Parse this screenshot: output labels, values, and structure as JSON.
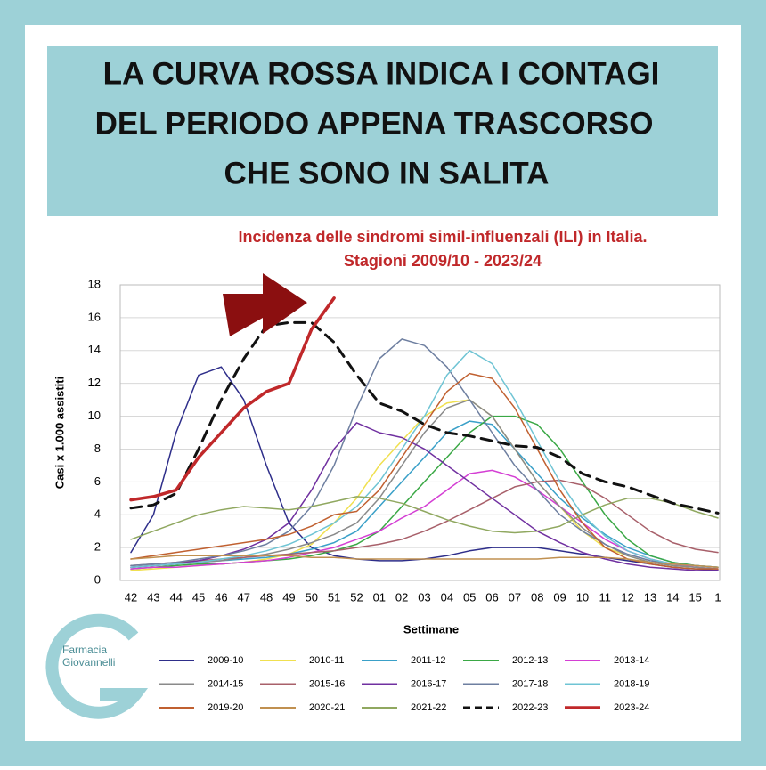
{
  "header": {
    "title_lines": [
      "LA CURVA ROSSA INDICA I CONTAGI",
      "DEL PERIODO APPENA TRASCORSO",
      "CHE SONO IN SALITA"
    ]
  },
  "logo": {
    "line1": "Farmacia",
    "line2": "Giovannelli"
  },
  "chart_data": {
    "type": "line",
    "title_lines": [
      "Incidenza delle sindromi simil-influenzali (ILI) in Italia.",
      "Stagioni 2009/10  - 2023/24"
    ],
    "xlabel": "Settimane",
    "ylabel": "Casi x 1.000 assistiti",
    "categories": [
      "42",
      "43",
      "44",
      "45",
      "46",
      "47",
      "48",
      "49",
      "50",
      "51",
      "52",
      "01",
      "02",
      "03",
      "04",
      "05",
      "06",
      "07",
      "08",
      "09",
      "10",
      "11",
      "12",
      "13",
      "14",
      "15",
      "1"
    ],
    "ylim": [
      0,
      18
    ],
    "yticks": [
      0,
      2,
      4,
      6,
      8,
      10,
      12,
      14,
      16,
      18
    ],
    "grid": true,
    "series": [
      {
        "name": "2009-10",
        "color": "#2e2e8a",
        "values": [
          1.7,
          4,
          9,
          12.5,
          13,
          11,
          7,
          3.5,
          2,
          1.5,
          1.3,
          1.2,
          1.2,
          1.3,
          1.5,
          1.8,
          2,
          2,
          2,
          1.8,
          1.6,
          1.4,
          1.2,
          1,
          0.8,
          0.7,
          0.6
        ]
      },
      {
        "name": "2010-11",
        "color": "#f0e050",
        "values": [
          0.6,
          0.7,
          0.8,
          0.9,
          1,
          1.1,
          1.3,
          1.6,
          2.2,
          3.5,
          5,
          7,
          8.5,
          10,
          10.8,
          11,
          10,
          8,
          6,
          4.5,
          3,
          2,
          1.5,
          1.1,
          0.9,
          0.8,
          0.7
        ]
      },
      {
        "name": "2011-12",
        "color": "#3aa0c8",
        "values": [
          0.8,
          0.9,
          1,
          1.1,
          1.2,
          1.3,
          1.4,
          1.6,
          1.9,
          2.3,
          3,
          4.5,
          6,
          7.5,
          9,
          9.7,
          9.5,
          8,
          6.5,
          5,
          3.8,
          2.8,
          2,
          1.5,
          1.1,
          0.9,
          0.8
        ]
      },
      {
        "name": "2012-13",
        "color": "#3aa845",
        "values": [
          0.7,
          0.8,
          0.9,
          1,
          1,
          1.1,
          1.2,
          1.3,
          1.5,
          1.8,
          2.2,
          3,
          4.5,
          6,
          7.5,
          9,
          10,
          10,
          9.5,
          8,
          6,
          4,
          2.5,
          1.5,
          1.1,
          0.9,
          0.8
        ]
      },
      {
        "name": "2013-14",
        "color": "#d43fd4",
        "values": [
          0.7,
          0.8,
          0.8,
          0.9,
          1,
          1.1,
          1.2,
          1.4,
          1.7,
          2,
          2.5,
          3,
          3.8,
          4.5,
          5.5,
          6.5,
          6.7,
          6.3,
          5.5,
          4.5,
          3.5,
          2.5,
          1.8,
          1.3,
          1,
          0.8,
          0.7
        ]
      },
      {
        "name": "2014-15",
        "color": "#8a8a8a",
        "values": [
          0.8,
          0.9,
          1,
          1.1,
          1.2,
          1.4,
          1.6,
          1.9,
          2.3,
          2.8,
          3.5,
          5,
          7,
          9,
          10.5,
          11,
          10,
          8,
          6,
          4.5,
          3.2,
          2.2,
          1.5,
          1.1,
          0.9,
          0.8,
          0.7
        ]
      },
      {
        "name": "2015-16",
        "color": "#a8606a",
        "values": [
          0.9,
          1,
          1.1,
          1.2,
          1.3,
          1.4,
          1.5,
          1.6,
          1.7,
          1.8,
          2,
          2.2,
          2.5,
          3,
          3.6,
          4.3,
          5,
          5.7,
          6,
          6.1,
          5.8,
          5,
          4,
          3,
          2.3,
          1.9,
          1.7
        ]
      },
      {
        "name": "2016-17",
        "color": "#7030a0",
        "values": [
          0.8,
          0.9,
          1,
          1.2,
          1.5,
          1.9,
          2.5,
          3.5,
          5.5,
          8,
          9.6,
          9,
          8.7,
          8,
          7,
          6,
          5,
          4,
          3,
          2.3,
          1.7,
          1.3,
          1,
          0.8,
          0.7,
          0.6,
          0.6
        ]
      },
      {
        "name": "2017-18",
        "color": "#6e7fa0",
        "values": [
          0.9,
          1,
          1.1,
          1.3,
          1.5,
          1.8,
          2.2,
          3,
          4.5,
          7,
          10.5,
          13.5,
          14.7,
          14.3,
          13,
          11,
          9,
          7,
          5.5,
          4,
          3,
          2.2,
          1.6,
          1.2,
          1,
          0.9,
          0.8
        ]
      },
      {
        "name": "2018-19",
        "color": "#6fc4d4",
        "values": [
          0.8,
          0.9,
          1,
          1.1,
          1.3,
          1.5,
          1.8,
          2.2,
          2.8,
          3.5,
          4.5,
          6,
          8,
          10,
          12.5,
          14,
          13.2,
          11,
          8.5,
          6,
          4,
          2.7,
          1.8,
          1.3,
          1,
          0.9,
          0.8
        ]
      },
      {
        "name": "2019-20",
        "color": "#c06030",
        "values": [
          1.3,
          1.5,
          1.7,
          1.9,
          2.1,
          2.3,
          2.5,
          2.8,
          3.3,
          4,
          4.2,
          5.5,
          7.5,
          9.5,
          11.5,
          12.6,
          12.3,
          10.5,
          8,
          5.5,
          3.5,
          2,
          1.3,
          1,
          0.8,
          0.7,
          0.7
        ]
      },
      {
        "name": "2020-21",
        "color": "#c09050",
        "values": [
          1.3,
          1.4,
          1.5,
          1.5,
          1.5,
          1.5,
          1.5,
          1.5,
          1.4,
          1.4,
          1.3,
          1.3,
          1.3,
          1.3,
          1.3,
          1.3,
          1.3,
          1.3,
          1.3,
          1.4,
          1.4,
          1.4,
          1.3,
          1.1,
          1,
          0.9,
          0.8
        ]
      },
      {
        "name": "2021-22",
        "color": "#90a860",
        "values": [
          2.5,
          3,
          3.5,
          4,
          4.3,
          4.5,
          4.4,
          4.3,
          4.5,
          4.8,
          5.1,
          5,
          4.7,
          4.2,
          3.7,
          3.3,
          3,
          2.9,
          3,
          3.3,
          4,
          4.6,
          5,
          5,
          4.7,
          4.2,
          3.8
        ]
      },
      {
        "name": "2022-23",
        "color": "#111111",
        "dashed": true,
        "width": 3,
        "values": [
          4.4,
          4.6,
          5.3,
          8,
          11,
          13.5,
          15.5,
          15.7,
          15.7,
          14.5,
          12.5,
          10.8,
          10.3,
          9.5,
          9,
          8.8,
          8.5,
          8.2,
          8.1,
          7.5,
          6.5,
          6,
          5.7,
          5.2,
          4.7,
          4.4,
          4.1
        ]
      },
      {
        "name": "2023-24",
        "color": "#c0282a",
        "width": 3.5,
        "values": [
          4.9,
          5.1,
          5.5,
          7.5,
          9,
          10.5,
          11.5,
          12,
          15.3,
          17.2,
          null,
          null,
          null,
          null,
          null,
          null,
          null,
          null,
          null,
          null,
          null,
          null,
          null,
          null,
          null,
          null,
          null
        ]
      }
    ]
  }
}
